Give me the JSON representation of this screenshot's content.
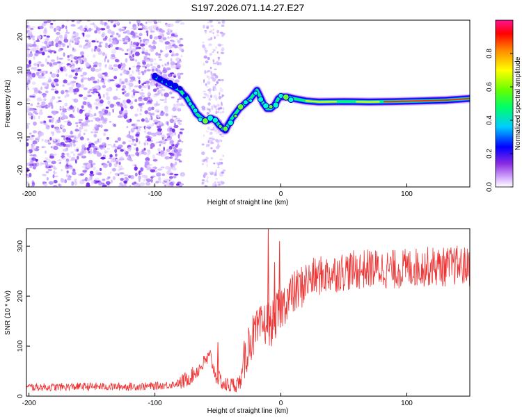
{
  "figure_title": "S197.2026.071.14.27.E27",
  "chart_data": [
    {
      "type": "heatmap",
      "name": "spectrogram",
      "title": "S197.2026.071.14.27.E27",
      "xlabel": "Height of straight line (km)",
      "ylabel": "Frequency (Hz)",
      "xlim": [
        -202,
        150
      ],
      "ylim": [
        -25,
        25
      ],
      "xticks": [
        -200,
        -100,
        0,
        100
      ],
      "xtick_labels": [
        "-200",
        "-100",
        "0",
        "100"
      ],
      "yticks": [
        -20,
        -10,
        0,
        10,
        20
      ],
      "ytick_labels": [
        "-20",
        "-10",
        "0",
        "10",
        "20"
      ],
      "noise_region_km": [
        -202,
        -78
      ],
      "noise_plume_km": [
        -62,
        -45
      ],
      "ridge_line": {
        "name": "dominant frequency trace",
        "x": [
          -100,
          -90,
          -80,
          -78,
          -75,
          -72,
          -70,
          -67,
          -64,
          -61,
          -58,
          -55,
          -52,
          -49,
          -46,
          -44,
          -42,
          -39,
          -36,
          -33,
          -30,
          -27,
          -24,
          -21,
          -19,
          -17,
          -14,
          -11,
          -8,
          -5,
          -2,
          0,
          5,
          10,
          20,
          30,
          50,
          70,
          90,
          110,
          130,
          150
        ],
        "y": [
          8,
          6,
          4,
          3,
          2,
          0,
          -1,
          -3,
          -4,
          -5,
          -5,
          -4.5,
          -5,
          -6.5,
          -7.5,
          -8,
          -6.5,
          -4.5,
          -3,
          -1.5,
          -0.5,
          0.5,
          1.5,
          3,
          4,
          2.5,
          0,
          -1.5,
          -1.5,
          -0.5,
          1.5,
          2,
          2,
          1.5,
          0.8,
          0.5,
          0.6,
          0.5,
          0.6,
          0.8,
          1,
          1.5
        ]
      }
    },
    {
      "type": "line",
      "name": "snr",
      "xlabel": "Height of straight line (km)",
      "ylabel": "SNR (10 * v/v)",
      "xlim": [
        -202,
        150
      ],
      "ylim": [
        0,
        335
      ],
      "xticks": [
        -200,
        -100,
        0,
        100
      ],
      "xtick_labels": [
        "-200",
        "-100",
        "0",
        "100"
      ],
      "yticks": [
        0,
        100,
        200,
        300
      ],
      "ytick_labels": [
        "0",
        "100",
        "200",
        "300"
      ],
      "color": "#ee3333",
      "series": [
        {
          "name": "SNR",
          "x": [
            -202,
            -180,
            -160,
            -140,
            -120,
            -100,
            -90,
            -80,
            -72,
            -65,
            -60,
            -56,
            -52,
            -48,
            -45,
            -40,
            -35,
            -32,
            -28,
            -25,
            -22,
            -20,
            -15,
            -12,
            -10,
            -8,
            -5,
            -3,
            0,
            5,
            10,
            15,
            20,
            25,
            30,
            40,
            50,
            60,
            70,
            80,
            90,
            100,
            110,
            120,
            130,
            140,
            150
          ],
          "y": [
            18,
            18,
            19,
            19,
            19,
            20,
            22,
            26,
            38,
            55,
            70,
            80,
            42,
            32,
            22,
            22,
            24,
            30,
            80,
            110,
            120,
            125,
            140,
            145,
            150,
            140,
            155,
            165,
            175,
            195,
            205,
            215,
            228,
            236,
            240,
            245,
            250,
            252,
            255,
            255,
            253,
            256,
            258,
            260,
            258,
            262,
            258
          ]
        }
      ],
      "spikes": [
        {
          "x": -10,
          "y": 335
        },
        {
          "x": -1,
          "y": 310
        },
        {
          "x": -5,
          "y": 268
        },
        {
          "x": -50,
          "y": 108
        }
      ]
    }
  ],
  "colorbar": {
    "label": "Normalized spectral amplitude",
    "min": 0.0,
    "max": 1.0,
    "ticks": [
      0.0,
      0.2,
      0.4,
      0.6,
      0.8
    ],
    "tick_labels": [
      "0.0",
      "0.2",
      "0.4",
      "0.6",
      "0.8"
    ],
    "colors": [
      "#ffffff",
      "#d9b3ff",
      "#8a2be2",
      "#0000ff",
      "#00ccff",
      "#00ff66",
      "#66ff00",
      "#ffff00",
      "#ff8800",
      "#ff0000",
      "#ff1493"
    ]
  }
}
